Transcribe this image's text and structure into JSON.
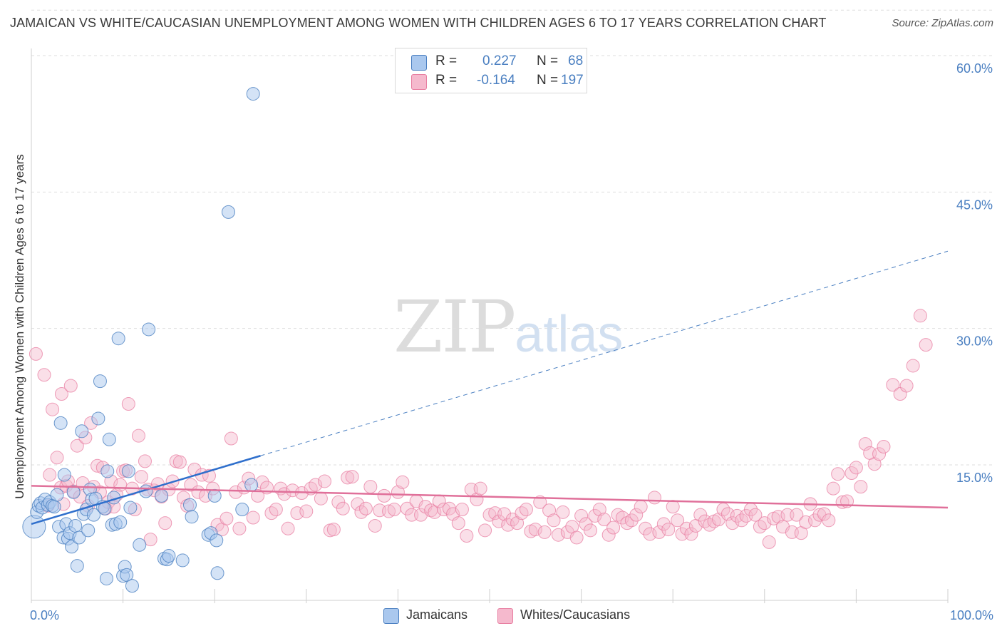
{
  "header": {
    "title": "JAMAICAN VS WHITE/CAUCASIAN UNEMPLOYMENT AMONG WOMEN WITH CHILDREN AGES 6 TO 17 YEARS CORRELATION CHART",
    "source": "Source: ZipAtlas.com"
  },
  "watermark": {
    "zip": "ZIP",
    "atlas": "atlas"
  },
  "legend": {
    "r_label": "R =",
    "n_label": "N =",
    "rows": [
      {
        "r": "0.227",
        "n": "68"
      },
      {
        "r": "-0.164",
        "n": "197"
      }
    ]
  },
  "colors": {
    "jamaicans": "#4a7fc1",
    "jamaicans_fill": "#aac8ee",
    "whites": "#e87ea1",
    "whites_fill": "#f5b9cd",
    "grid": "#dedede"
  },
  "chart_data": {
    "type": "scatter",
    "title": "JAMAICAN VS WHITE/CAUCASIAN UNEMPLOYMENT AMONG WOMEN WITH CHILDREN AGES 6 TO 17 YEARS CORRELATION CHART",
    "xlabel": "",
    "ylabel": "Unemployment Among Women with Children Ages 6 to 17 years",
    "xlim": [
      0,
      100
    ],
    "ylim": [
      0,
      65
    ],
    "x_tick_labels": [
      "0.0%",
      "100.0%"
    ],
    "y_ticks": [
      15,
      30,
      45,
      60
    ],
    "y_tick_labels": [
      "15.0%",
      "30.0%",
      "45.0%",
      "60.0%"
    ],
    "grid": true,
    "series": [
      {
        "name": "Jamaicans",
        "r": 0.227,
        "n": 68,
        "trend": {
          "x": [
            0,
            25
          ],
          "y": [
            8.5,
            16.0
          ],
          "dashed_to": [
            100,
            38.5
          ]
        },
        "points": [
          [
            0.3,
            8.2
          ],
          [
            0.6,
            9.8
          ],
          [
            0.8,
            10.5
          ],
          [
            1.0,
            10.8
          ],
          [
            1.2,
            10.3
          ],
          [
            1.5,
            11.2
          ],
          [
            1.8,
            10.6
          ],
          [
            2.0,
            10.9
          ],
          [
            2.3,
            10.5
          ],
          [
            2.5,
            10.4
          ],
          [
            2.8,
            11.7
          ],
          [
            3.0,
            8.2
          ],
          [
            3.2,
            19.6
          ],
          [
            3.5,
            7.0
          ],
          [
            3.6,
            13.9
          ],
          [
            3.8,
            8.5
          ],
          [
            4.0,
            6.9
          ],
          [
            4.2,
            7.5
          ],
          [
            4.4,
            6.0
          ],
          [
            4.6,
            12.0
          ],
          [
            4.8,
            8.3
          ],
          [
            5.0,
            3.9
          ],
          [
            5.2,
            7.0
          ],
          [
            5.5,
            18.7
          ],
          [
            5.7,
            9.6
          ],
          [
            6.0,
            10.1
          ],
          [
            6.2,
            7.8
          ],
          [
            6.4,
            12.3
          ],
          [
            6.6,
            11.2
          ],
          [
            6.8,
            9.5
          ],
          [
            7.0,
            11.3
          ],
          [
            7.3,
            20.1
          ],
          [
            7.5,
            24.2
          ],
          [
            7.8,
            10.4
          ],
          [
            8.0,
            10.2
          ],
          [
            8.2,
            2.5
          ],
          [
            8.3,
            14.3
          ],
          [
            8.5,
            17.8
          ],
          [
            8.8,
            8.4
          ],
          [
            9.0,
            11.4
          ],
          [
            9.2,
            8.5
          ],
          [
            9.5,
            28.9
          ],
          [
            9.7,
            8.7
          ],
          [
            10.0,
            2.8
          ],
          [
            10.2,
            3.8
          ],
          [
            10.4,
            2.9
          ],
          [
            10.6,
            14.3
          ],
          [
            10.8,
            10.3
          ],
          [
            11.0,
            1.7
          ],
          [
            11.8,
            6.2
          ],
          [
            12.5,
            12.1
          ],
          [
            12.8,
            29.9
          ],
          [
            14.2,
            11.6
          ],
          [
            14.5,
            4.7
          ],
          [
            14.8,
            4.6
          ],
          [
            15.0,
            5.0
          ],
          [
            16.5,
            4.5
          ],
          [
            17.3,
            10.6
          ],
          [
            17.5,
            9.3
          ],
          [
            19.3,
            7.3
          ],
          [
            19.6,
            7.5
          ],
          [
            20.0,
            11.6
          ],
          [
            20.2,
            6.7
          ],
          [
            20.3,
            3.1
          ],
          [
            21.5,
            42.8
          ],
          [
            23.0,
            10.1
          ],
          [
            24.0,
            12.8
          ],
          [
            24.2,
            55.8
          ]
        ]
      },
      {
        "name": "Whites/Caucasians",
        "r": -0.164,
        "n": 197,
        "trend": {
          "x": [
            0,
            100
          ],
          "y": [
            12.7,
            10.3
          ]
        },
        "points": [
          [
            0.5,
            27.2
          ],
          [
            1.4,
            24.9
          ],
          [
            1.8,
            10.5
          ],
          [
            2.0,
            13.9
          ],
          [
            2.3,
            21.1
          ],
          [
            2.8,
            15.8
          ],
          [
            3.2,
            12.5
          ],
          [
            3.3,
            22.8
          ],
          [
            3.5,
            10.7
          ],
          [
            3.8,
            12.7
          ],
          [
            4.0,
            13.2
          ],
          [
            4.3,
            23.7
          ],
          [
            4.6,
            12.1
          ],
          [
            5.0,
            17.1
          ],
          [
            5.3,
            11.5
          ],
          [
            5.6,
            13.0
          ],
          [
            5.9,
            18.0
          ],
          [
            6.2,
            10.5
          ],
          [
            6.5,
            19.6
          ],
          [
            6.8,
            12.6
          ],
          [
            7.2,
            14.9
          ],
          [
            7.5,
            12.0
          ],
          [
            7.8,
            14.7
          ],
          [
            8.1,
            10.2
          ],
          [
            8.4,
            10.9
          ],
          [
            8.7,
            13.2
          ],
          [
            9.0,
            10.4
          ],
          [
            9.3,
            11.7
          ],
          [
            9.7,
            12.8
          ],
          [
            10.0,
            14.3
          ],
          [
            10.3,
            14.4
          ],
          [
            10.6,
            21.7
          ],
          [
            11.0,
            12.4
          ],
          [
            11.3,
            10.1
          ],
          [
            11.7,
            18.2
          ],
          [
            12.0,
            13.7
          ],
          [
            12.4,
            15.4
          ],
          [
            12.7,
            12.3
          ],
          [
            13.0,
            6.8
          ],
          [
            13.4,
            12.2
          ],
          [
            13.8,
            12.9
          ],
          [
            14.2,
            11.5
          ],
          [
            14.6,
            8.6
          ],
          [
            15.0,
            12.3
          ],
          [
            15.4,
            13.2
          ],
          [
            15.8,
            15.4
          ],
          [
            16.2,
            15.3
          ],
          [
            16.6,
            11.4
          ],
          [
            17.0,
            10.5
          ],
          [
            17.4,
            12.8
          ],
          [
            17.8,
            14.5
          ],
          [
            18.2,
            12.0
          ],
          [
            18.6,
            13.9
          ],
          [
            19.0,
            11.6
          ],
          [
            19.4,
            13.8
          ],
          [
            19.8,
            12.4
          ],
          [
            20.3,
            8.4
          ],
          [
            20.8,
            7.9
          ],
          [
            21.3,
            9.1
          ],
          [
            21.8,
            17.9
          ],
          [
            22.3,
            12.0
          ],
          [
            22.7,
            8.0
          ],
          [
            23.2,
            12.5
          ],
          [
            23.7,
            13.5
          ],
          [
            24.2,
            9.2
          ],
          [
            24.7,
            11.6
          ],
          [
            25.2,
            13.1
          ],
          [
            25.7,
            12.5
          ],
          [
            26.2,
            9.7
          ],
          [
            26.7,
            10.1
          ],
          [
            27.2,
            12.4
          ],
          [
            27.6,
            11.8
          ],
          [
            28.0,
            8.0
          ],
          [
            28.5,
            12.2
          ],
          [
            29.0,
            9.7
          ],
          [
            29.5,
            11.9
          ],
          [
            30.0,
            9.9
          ],
          [
            30.5,
            12.4
          ],
          [
            31.0,
            12.8
          ],
          [
            31.6,
            11.3
          ],
          [
            32.0,
            13.2
          ],
          [
            32.6,
            7.8
          ],
          [
            33.0,
            7.9
          ],
          [
            33.5,
            10.9
          ],
          [
            34.0,
            10.2
          ],
          [
            34.5,
            13.6
          ],
          [
            35.0,
            13.7
          ],
          [
            35.6,
            10.7
          ],
          [
            36.0,
            9.8
          ],
          [
            36.5,
            10.2
          ],
          [
            37.0,
            12.6
          ],
          [
            37.5,
            8.3
          ],
          [
            38.0,
            10.0
          ],
          [
            38.5,
            11.6
          ],
          [
            39.0,
            9.9
          ],
          [
            39.6,
            10.1
          ],
          [
            40.0,
            12.0
          ],
          [
            40.5,
            13.1
          ],
          [
            41.0,
            10.2
          ],
          [
            41.5,
            9.5
          ],
          [
            42.0,
            11.0
          ],
          [
            42.5,
            9.5
          ],
          [
            43.0,
            10.4
          ],
          [
            43.6,
            10.0
          ],
          [
            44.0,
            9.8
          ],
          [
            44.5,
            11.0
          ],
          [
            45.0,
            10.1
          ],
          [
            45.6,
            10.2
          ],
          [
            46.0,
            9.6
          ],
          [
            46.6,
            8.6
          ],
          [
            47.0,
            10.1
          ],
          [
            47.5,
            7.2
          ],
          [
            48.0,
            12.3
          ],
          [
            48.6,
            11.2
          ],
          [
            49.0,
            12.4
          ],
          [
            49.5,
            7.8
          ],
          [
            50.0,
            9.5
          ],
          [
            50.6,
            9.7
          ],
          [
            51.0,
            8.8
          ],
          [
            51.6,
            9.6
          ],
          [
            52.0,
            8.4
          ],
          [
            52.5,
            9.0
          ],
          [
            53.0,
            8.6
          ],
          [
            53.5,
            9.7
          ],
          [
            54.0,
            10.1
          ],
          [
            54.5,
            7.7
          ],
          [
            55.0,
            7.9
          ],
          [
            55.5,
            10.9
          ],
          [
            56.0,
            7.6
          ],
          [
            56.5,
            10.0
          ],
          [
            57.0,
            8.9
          ],
          [
            57.5,
            7.3
          ],
          [
            58.0,
            9.8
          ],
          [
            58.5,
            7.6
          ],
          [
            59.0,
            8.2
          ],
          [
            59.5,
            7.0
          ],
          [
            60.0,
            9.4
          ],
          [
            60.5,
            8.5
          ],
          [
            61.0,
            7.8
          ],
          [
            61.5,
            9.4
          ],
          [
            62.0,
            10.1
          ],
          [
            62.5,
            9.0
          ],
          [
            63.0,
            7.3
          ],
          [
            63.5,
            8.1
          ],
          [
            64.0,
            9.5
          ],
          [
            64.5,
            9.2
          ],
          [
            65.0,
            8.6
          ],
          [
            65.5,
            8.9
          ],
          [
            66.0,
            9.5
          ],
          [
            66.5,
            10.4
          ],
          [
            67.0,
            8.0
          ],
          [
            67.5,
            7.4
          ],
          [
            68.0,
            11.4
          ],
          [
            68.5,
            7.6
          ],
          [
            69.0,
            8.5
          ],
          [
            69.5,
            7.9
          ],
          [
            70.0,
            10.4
          ],
          [
            70.5,
            8.9
          ],
          [
            71.0,
            7.4
          ],
          [
            71.5,
            8.0
          ],
          [
            72.0,
            7.4
          ],
          [
            72.5,
            8.3
          ],
          [
            73.0,
            9.5
          ],
          [
            73.5,
            8.8
          ],
          [
            74.0,
            8.4
          ],
          [
            74.5,
            8.8
          ],
          [
            75.0,
            9.0
          ],
          [
            75.5,
            10.1
          ],
          [
            76.0,
            9.6
          ],
          [
            76.5,
            8.6
          ],
          [
            77.0,
            9.4
          ],
          [
            77.5,
            8.9
          ],
          [
            78.0,
            9.4
          ],
          [
            78.5,
            10.1
          ],
          [
            79.0,
            9.5
          ],
          [
            79.5,
            8.2
          ],
          [
            80.0,
            8.6
          ],
          [
            80.5,
            6.5
          ],
          [
            81.0,
            9.1
          ],
          [
            81.5,
            9.3
          ],
          [
            82.0,
            8.2
          ],
          [
            82.5,
            9.5
          ],
          [
            83.0,
            7.6
          ],
          [
            83.5,
            9.5
          ],
          [
            84.0,
            7.5
          ],
          [
            84.5,
            8.7
          ],
          [
            85.0,
            10.7
          ],
          [
            85.5,
            8.9
          ],
          [
            86.0,
            9.5
          ],
          [
            86.5,
            9.6
          ],
          [
            87.0,
            8.9
          ],
          [
            87.5,
            12.4
          ],
          [
            88.0,
            14.0
          ],
          [
            88.5,
            10.9
          ],
          [
            89.0,
            11.0
          ],
          [
            89.5,
            14.1
          ],
          [
            90.0,
            14.7
          ],
          [
            90.5,
            12.6
          ],
          [
            91.0,
            17.3
          ],
          [
            91.5,
            16.3
          ],
          [
            92.0,
            15.1
          ],
          [
            92.5,
            16.2
          ],
          [
            93.0,
            17.0
          ],
          [
            94.0,
            23.8
          ],
          [
            94.8,
            22.8
          ],
          [
            95.5,
            23.7
          ],
          [
            96.2,
            25.9
          ],
          [
            97.0,
            31.4
          ],
          [
            97.6,
            28.2
          ]
        ]
      }
    ]
  },
  "bottom_legend": {
    "items": [
      {
        "label": "Jamaicans"
      },
      {
        "label": "Whites/Caucasians"
      }
    ]
  }
}
